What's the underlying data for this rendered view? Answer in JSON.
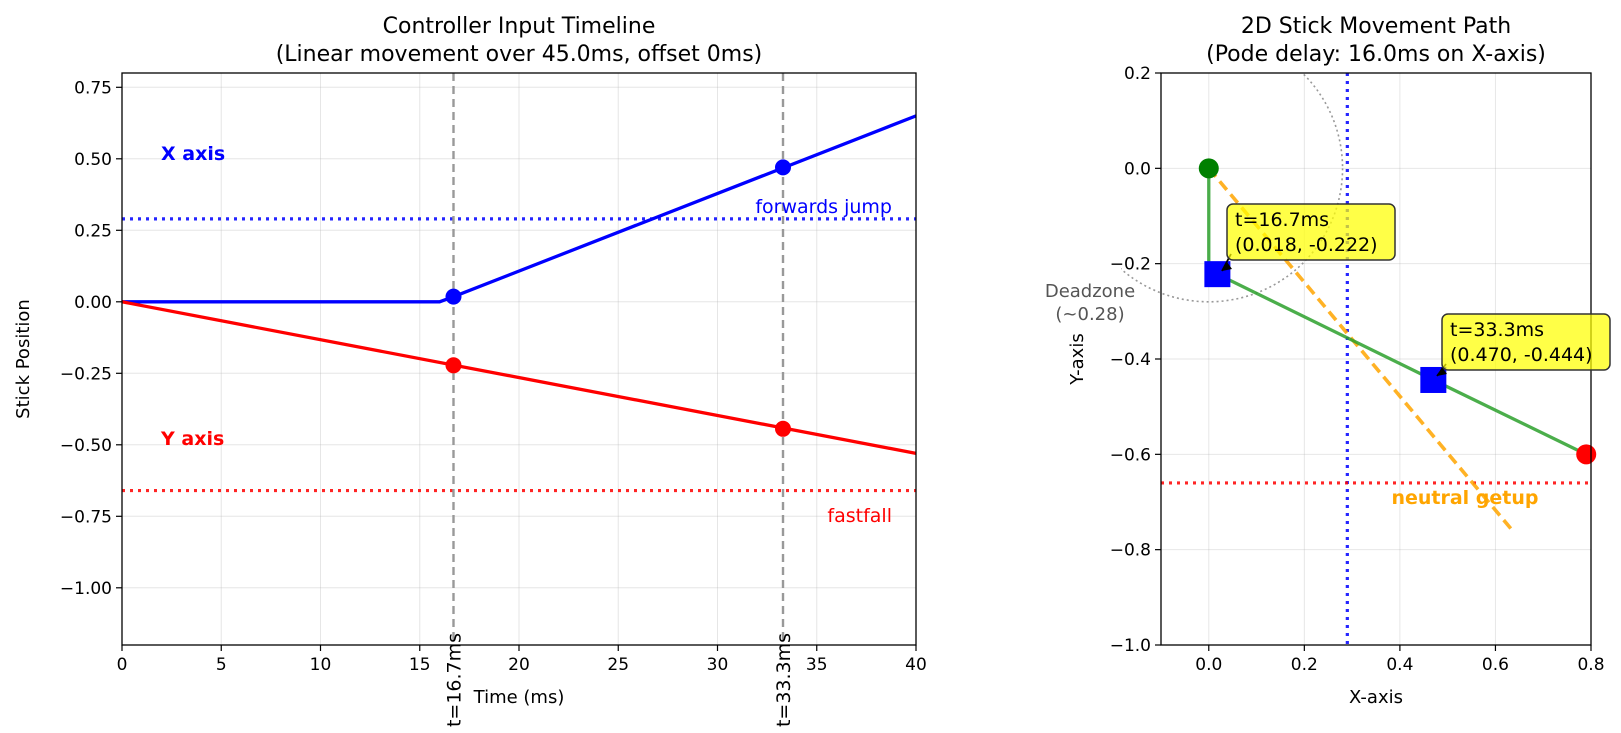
{
  "chart_data": [
    {
      "type": "line",
      "title": "Controller Input Timeline\n(Linear movement over 45.0ms, offset 0ms)",
      "xlabel": "Time (ms)",
      "ylabel": "Stick Position",
      "xlim": [
        0,
        40
      ],
      "ylim": [
        -1.2,
        0.8
      ],
      "xticks": [
        0,
        5,
        10,
        15,
        20,
        25,
        30,
        35,
        40
      ],
      "yticks": [
        0.75,
        0.5,
        0.25,
        0.0,
        -0.25,
        -0.5,
        -0.75,
        -1.0
      ],
      "grid": true,
      "series": [
        {
          "name": "X axis",
          "color": "#0000ff",
          "x": [
            0,
            16.0,
            16.7,
            40
          ],
          "y": [
            0,
            0,
            0.018,
            0.65
          ],
          "markers": [
            {
              "x": 16.7,
              "y": 0.018
            },
            {
              "x": 33.3,
              "y": 0.47
            }
          ]
        },
        {
          "name": "Y axis",
          "color": "#ff0000",
          "x": [
            0,
            40
          ],
          "y": [
            0,
            -0.53
          ],
          "markers": [
            {
              "x": 16.7,
              "y": -0.222
            },
            {
              "x": 33.3,
              "y": -0.444
            }
          ]
        }
      ],
      "thresholds": [
        {
          "label": "forwards jump",
          "y": 0.29,
          "color": "#0000ff"
        },
        {
          "label": "fastfall",
          "y": -0.66,
          "color": "#ff0000"
        }
      ],
      "vlines": [
        {
          "x": 16.7,
          "label": "t=16.7ms"
        },
        {
          "x": 33.3,
          "label": "t=33.3ms"
        }
      ]
    },
    {
      "type": "scatter",
      "title": "2D Stick Movement Path\n(Pode delay: 16.0ms on X-axis)",
      "xlabel": "X-axis",
      "ylabel": "Y-axis",
      "xlim": [
        -0.1,
        0.8
      ],
      "ylim": [
        -1.0,
        0.2
      ],
      "xticks": [
        0.0,
        0.2,
        0.4,
        0.6,
        0.8
      ],
      "yticks": [
        0.2,
        0.0,
        -0.2,
        -0.4,
        -0.6,
        -0.8,
        -1.0
      ],
      "grid": true,
      "path": {
        "color": "#2ca02c",
        "points": [
          [
            0,
            0
          ],
          [
            0,
            -0.222
          ],
          [
            0.018,
            -0.222
          ],
          [
            0.47,
            -0.444
          ],
          [
            0.79,
            -0.6
          ]
        ]
      },
      "start_point": {
        "x": 0,
        "y": 0,
        "color": "#008000"
      },
      "end_point": {
        "x": 0.79,
        "y": -0.6,
        "color": "#ff0000"
      },
      "samples": [
        {
          "x": 0.018,
          "y": -0.222,
          "label": "t=16.7ms\n(0.018, -0.222)"
        },
        {
          "x": 0.47,
          "y": -0.444,
          "label": "t=33.3ms\n(0.470, -0.444)"
        }
      ],
      "neutral_line": {
        "label": "neutral getup",
        "color": "#ffa500",
        "x": [
          0,
          0.64
        ],
        "y": [
          0,
          -0.765
        ]
      },
      "deadzone": {
        "label": "Deadzone\n(~0.28)",
        "radius": 0.28
      },
      "vline": {
        "x": 0.29,
        "color": "#0000ff"
      },
      "hline": {
        "y": -0.66,
        "color": "#ff0000"
      }
    }
  ]
}
